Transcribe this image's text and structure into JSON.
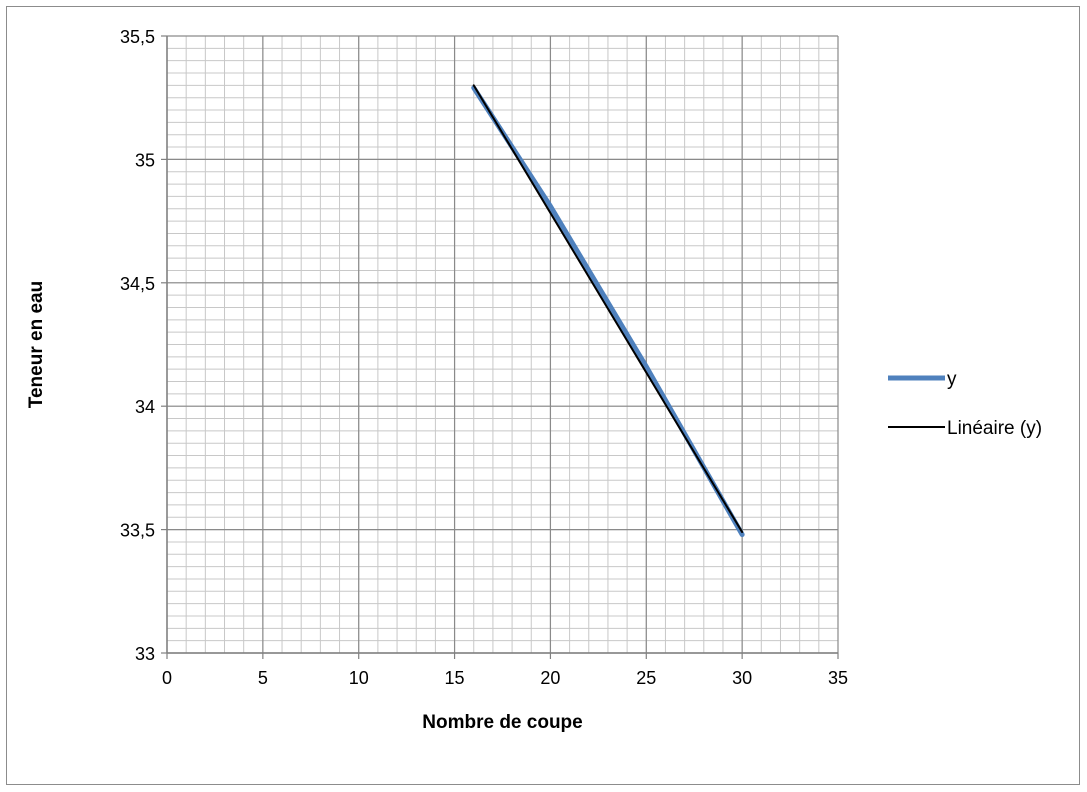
{
  "chart_data": {
    "type": "line",
    "xlabel": "Nombre de coupe",
    "ylabel": "Teneur en eau",
    "xlim": [
      0,
      35
    ],
    "ylim": [
      33,
      35.5
    ],
    "x_ticks": [
      0,
      5,
      10,
      15,
      20,
      25,
      30,
      35
    ],
    "y_ticks": [
      33,
      33.5,
      34,
      34.5,
      35,
      35.5
    ],
    "x_tick_labels": [
      "0",
      "5",
      "10",
      "15",
      "20",
      "25",
      "30",
      "35"
    ],
    "y_tick_labels": [
      "33",
      "33,5",
      "34",
      "34,5",
      "35",
      "35,5"
    ],
    "x_minor_step": 1,
    "y_minor_step": 0.05,
    "grid": true,
    "legend_position": "right",
    "series": [
      {
        "name": "y",
        "x": [
          16,
          20,
          25,
          30
        ],
        "y": [
          35.29,
          34.81,
          34.16,
          33.48
        ],
        "color": "#4f81bd"
      },
      {
        "name": "Linéaire (y)",
        "x": [
          16,
          30
        ],
        "y": [
          35.3,
          33.49
        ],
        "color": "#000000"
      }
    ]
  }
}
